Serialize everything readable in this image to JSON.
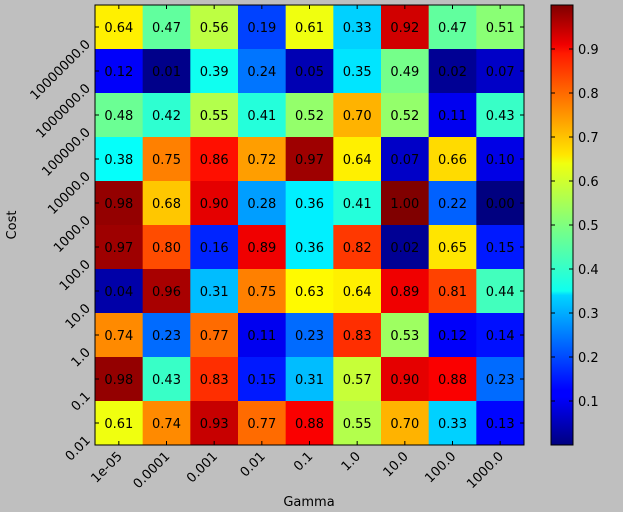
{
  "chart_data": {
    "type": "heatmap",
    "xlabel": "Gamma",
    "ylabel": "Cost",
    "x_categories": [
      "1e-05",
      "0.0001",
      "0.001",
      "0.01",
      "0.1",
      "1.0",
      "10.0",
      "100.0",
      "1000.0"
    ],
    "y_categories": [
      "10000000.0",
      "1000000.0",
      "100000.0",
      "10000.0",
      "1000.0",
      "100.0",
      "10.0",
      "1.0",
      "0.1",
      "0.01"
    ],
    "values": [
      [
        0.64,
        0.47,
        0.56,
        0.19,
        0.61,
        0.33,
        0.92,
        0.47,
        0.51
      ],
      [
        0.12,
        0.01,
        0.39,
        0.24,
        0.05,
        0.35,
        0.49,
        0.02,
        0.07
      ],
      [
        0.48,
        0.42,
        0.55,
        0.41,
        0.52,
        0.7,
        0.52,
        0.11,
        0.43
      ],
      [
        0.38,
        0.75,
        0.86,
        0.72,
        0.97,
        0.64,
        0.07,
        0.66,
        0.1
      ],
      [
        0.98,
        0.68,
        0.9,
        0.28,
        0.36,
        0.41,
        1.0,
        0.22,
        0.0
      ],
      [
        0.97,
        0.8,
        0.16,
        0.89,
        0.36,
        0.82,
        0.02,
        0.65,
        0.15
      ],
      [
        0.04,
        0.96,
        0.31,
        0.75,
        0.63,
        0.64,
        0.89,
        0.81,
        0.44
      ],
      [
        0.74,
        0.23,
        0.77,
        0.11,
        0.23,
        0.83,
        0.53,
        0.12,
        0.14
      ],
      [
        0.98,
        0.43,
        0.83,
        0.15,
        0.31,
        0.57,
        0.9,
        0.88,
        0.23
      ],
      [
        0.61,
        0.74,
        0.93,
        0.77,
        0.88,
        0.55,
        0.7,
        0.33,
        0.13
      ]
    ],
    "colormap": "jet",
    "colorbar": {
      "range": [
        0,
        1
      ],
      "ticks": [
        0.1,
        0.2,
        0.3,
        0.4,
        0.5,
        0.6,
        0.7,
        0.8,
        0.9
      ],
      "tick_labels": [
        "0.1",
        "0.2",
        "0.3",
        "0.4",
        "0.5",
        "0.6",
        "0.7",
        "0.8",
        "0.9"
      ]
    },
    "grid": false,
    "legend": "none"
  },
  "colors": {
    "background": "#bfbfbf",
    "axes_edge": "#000000",
    "text": "#000000"
  }
}
